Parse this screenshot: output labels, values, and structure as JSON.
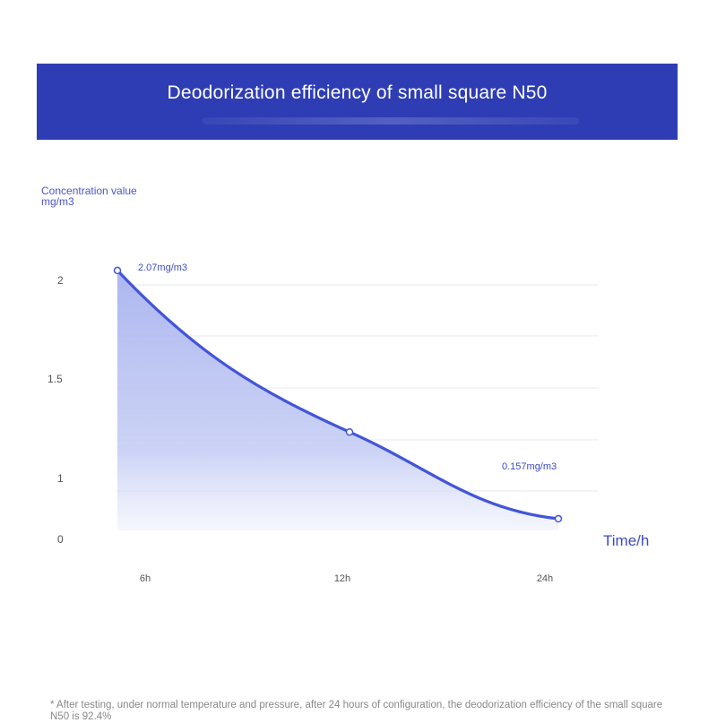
{
  "header": {
    "title": "Deodorization efficiency of small square N50"
  },
  "chart_data": {
    "type": "area",
    "title": "Deodorization efficiency of small square N50",
    "ylabel": "Concentration value mg/m3",
    "xlabel": "Time/h",
    "categories": [
      "6h",
      "12h",
      "24h"
    ],
    "values": [
      2.07,
      1.27,
      0.157
    ],
    "y_ticks": [
      "0",
      "1",
      "1.5",
      "2"
    ],
    "annotations": [
      {
        "label": "2.07mg/m3",
        "category": "6h"
      },
      {
        "label": "0.157mg/m3",
        "category": "24h"
      }
    ],
    "grid": true,
    "colors": {
      "line": "#4255d9",
      "fill": "#b6bff0",
      "axis_text": "#555555",
      "accent_text": "#3b4bc8"
    }
  },
  "footnote": "* After testing, under normal temperature and pressure, after 24 hours of configuration, the deodorization efficiency of the small square N50 is 92.4%"
}
